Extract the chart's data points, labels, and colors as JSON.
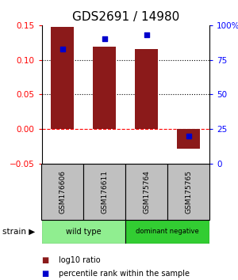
{
  "title": "GDS2691 / 14980",
  "samples": [
    "GSM176606",
    "GSM176611",
    "GSM175764",
    "GSM175765"
  ],
  "log10_ratio": [
    0.147,
    0.119,
    0.116,
    -0.028
  ],
  "percentile_rank_pct": [
    83,
    90,
    93,
    20
  ],
  "bar_color": "#8B1A1A",
  "dot_color": "#0000CC",
  "left_ylim": [
    -0.05,
    0.15
  ],
  "right_ylim": [
    0,
    100
  ],
  "yticks_left": [
    -0.05,
    0,
    0.05,
    0.1,
    0.15
  ],
  "yticks_right": [
    0,
    25,
    50,
    75,
    100
  ],
  "ytick_labels_right": [
    "0",
    "25",
    "50",
    "75",
    "100%"
  ],
  "dotted_lines": [
    0.05,
    0.1
  ],
  "groups": [
    {
      "label": "wild type",
      "samples": [
        0,
        1
      ],
      "color": "#90EE90"
    },
    {
      "label": "dominant negative",
      "samples": [
        2,
        3
      ],
      "color": "#32CD32"
    }
  ],
  "strain_label": "strain",
  "legend_bar_label": "log10 ratio",
  "legend_dot_label": "percentile rank within the sample",
  "title_fontsize": 11,
  "tick_fontsize": 7.5
}
